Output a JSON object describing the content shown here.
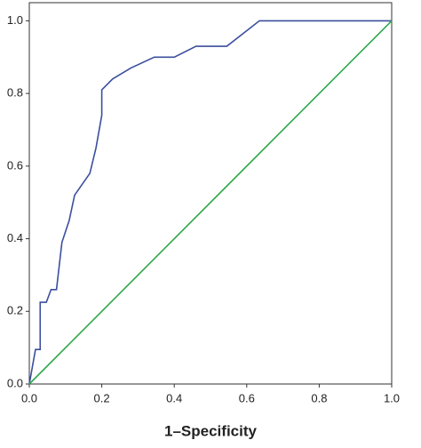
{
  "chart_data": {
    "type": "line",
    "x_label": "1–Specificity",
    "xlim": [
      0,
      1
    ],
    "ylim": [
      0,
      1.05
    ],
    "xticks": [
      {
        "value": 0,
        "label": "0.0"
      },
      0.2,
      0.4,
      0.6,
      0.8,
      {
        "value": 1,
        "label": "1.0"
      }
    ],
    "yticks": [
      {
        "value": 0,
        "label": "0.0"
      },
      0.2,
      0.4,
      0.6,
      0.8,
      {
        "value": 1,
        "label": "1.0"
      }
    ],
    "series": [
      {
        "color": "#3b4f9e",
        "x": [
          0,
          0.017,
          0.03,
          0.03,
          0.047,
          0.06,
          0.075,
          0.09,
          0.11,
          0.125,
          0.167,
          0.184,
          0.2,
          0.2,
          0.23,
          0.28,
          0.345,
          0.4,
          0.46,
          0.545,
          0.635,
          1
        ],
        "values": [
          0,
          0.095,
          0.095,
          0.225,
          0.225,
          0.26,
          0.26,
          0.39,
          0.45,
          0.52,
          0.58,
          0.65,
          0.74,
          0.81,
          0.84,
          0.87,
          0.9,
          0.9,
          0.93,
          0.93,
          1,
          1
        ]
      },
      {
        "color": "#2fa84a",
        "x": [
          0,
          1
        ],
        "values": [
          0,
          1
        ]
      }
    ]
  }
}
